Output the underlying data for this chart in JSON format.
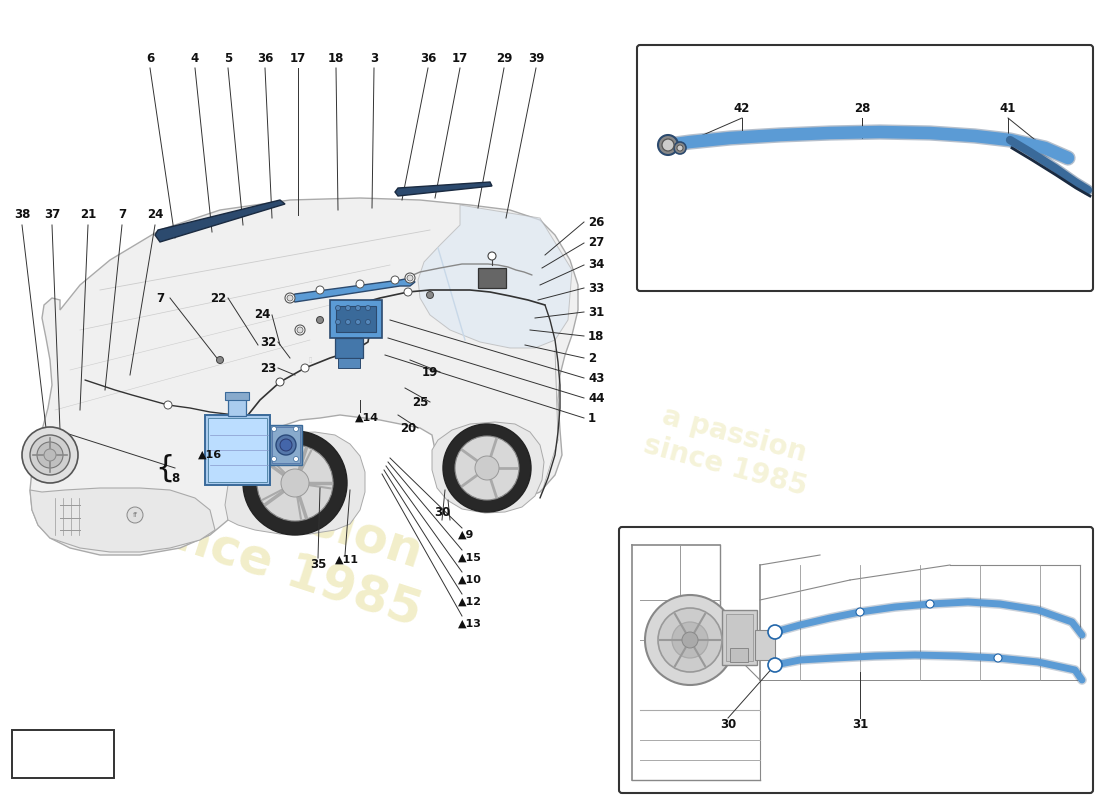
{
  "bg": "#ffffff",
  "car_outline": "#555555",
  "car_fill": "#f5f5f5",
  "blue": "#5b9bd5",
  "dark_blue": "#2c4a6e",
  "wm_color": "#d4c850",
  "label_color": "#111111",
  "figsize": [
    11,
    8
  ],
  "dpi": 100,
  "top_labels": [
    [
      "6",
      150,
      58
    ],
    [
      "4",
      195,
      58
    ],
    [
      "5",
      228,
      58
    ],
    [
      "36",
      265,
      58
    ],
    [
      "17",
      298,
      58
    ],
    [
      "18",
      336,
      58
    ],
    [
      "3",
      374,
      58
    ],
    [
      "36",
      428,
      58
    ],
    [
      "17",
      460,
      58
    ],
    [
      "29",
      504,
      58
    ],
    [
      "39",
      536,
      58
    ]
  ],
  "left_labels": [
    [
      "38",
      22,
      210
    ],
    [
      "37",
      52,
      210
    ],
    [
      "21",
      88,
      210
    ],
    [
      "7",
      122,
      210
    ],
    [
      "24",
      155,
      210
    ]
  ],
  "right_labels": [
    [
      "26",
      575,
      218
    ],
    [
      "27",
      575,
      240
    ],
    [
      "34",
      575,
      265
    ],
    [
      "33",
      575,
      288
    ],
    [
      "31",
      575,
      314
    ],
    [
      "18",
      575,
      338
    ],
    [
      "2",
      575,
      358
    ],
    [
      "43",
      575,
      376
    ],
    [
      "44",
      575,
      395
    ],
    [
      "1",
      575,
      415
    ]
  ],
  "mid_labels": [
    [
      "7",
      160,
      295
    ],
    [
      "22",
      220,
      295
    ],
    [
      "24",
      265,
      310
    ],
    [
      "32",
      270,
      340
    ],
    [
      "23",
      270,
      365
    ],
    [
      "19",
      430,
      368
    ],
    [
      "25",
      420,
      400
    ],
    [
      "20",
      410,
      425
    ]
  ],
  "triangle_labels": [
    [
      "▲14",
      355,
      412
    ],
    [
      "▲16",
      200,
      452
    ],
    [
      "▲11",
      335,
      560
    ],
    [
      "▲9",
      455,
      530
    ],
    [
      "▲15",
      460,
      555
    ],
    [
      "▲10",
      458,
      578
    ],
    [
      "▲12",
      458,
      600
    ],
    [
      "▲13",
      458,
      622
    ]
  ],
  "plain_bottom_labels": [
    [
      "8",
      172,
      455
    ],
    [
      "30",
      442,
      510
    ],
    [
      "35",
      318,
      562
    ]
  ],
  "inset1_labels": [
    [
      "42",
      742,
      108
    ],
    [
      "28",
      862,
      108
    ],
    [
      "41",
      1008,
      108
    ]
  ],
  "inset2_labels": [
    [
      "30",
      728,
      720
    ],
    [
      "31",
      860,
      720
    ]
  ]
}
